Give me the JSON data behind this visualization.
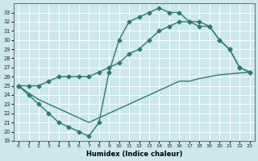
{
  "xlabel": "Humidex (Indice chaleur)",
  "bg_color": "#cce8e8",
  "grid_color": "#b0d4d4",
  "line_color": "#2a7d6f",
  "xlim": [
    -0.5,
    23.5
  ],
  "ylim": [
    19,
    34
  ],
  "yticks": [
    19,
    20,
    21,
    22,
    23,
    24,
    25,
    26,
    27,
    28,
    29,
    30,
    31,
    32,
    33
  ],
  "xticks": [
    0,
    1,
    2,
    3,
    4,
    5,
    6,
    7,
    8,
    9,
    10,
    11,
    12,
    13,
    14,
    15,
    16,
    17,
    18,
    19,
    20,
    21,
    22,
    23
  ],
  "line1_x": [
    0,
    1,
    2,
    3,
    4,
    5,
    6,
    7,
    8,
    9,
    10,
    11,
    12,
    13,
    14,
    15,
    16,
    17,
    18,
    19,
    20,
    21,
    22,
    23
  ],
  "line1_y": [
    25,
    24,
    23,
    22,
    21,
    20.5,
    20,
    19.5,
    21,
    26.5,
    30,
    32,
    32.5,
    33,
    33.5,
    33,
    33,
    32,
    31.5,
    31.5,
    30,
    29,
    27,
    26.5
  ],
  "line2_x": [
    0,
    1,
    2,
    3,
    4,
    5,
    6,
    7,
    8,
    9,
    10,
    11,
    12,
    13,
    14,
    15,
    16,
    17,
    18,
    19,
    20,
    21,
    22,
    23
  ],
  "line2_y": [
    25,
    25,
    25,
    25.5,
    26,
    26,
    26,
    26,
    26.5,
    27,
    27.5,
    28.5,
    29,
    30,
    31,
    31.5,
    32,
    32,
    32,
    31.5,
    30,
    29,
    27,
    26.5
  ],
  "line3_x": [
    0,
    1,
    2,
    3,
    4,
    5,
    6,
    7,
    8,
    9,
    10,
    11,
    12,
    13,
    14,
    15,
    16,
    17,
    18,
    19,
    20,
    21,
    22,
    23
  ],
  "line3_y": [
    25,
    24.2,
    23.5,
    23,
    22.5,
    22,
    21.5,
    21,
    21.5,
    22,
    22.5,
    23,
    23.5,
    24,
    24.5,
    25,
    25.5,
    25.5,
    25.8,
    26,
    26.2,
    26.3,
    26.4,
    26.5
  ],
  "markersize": 2.5,
  "linewidth": 1.0
}
